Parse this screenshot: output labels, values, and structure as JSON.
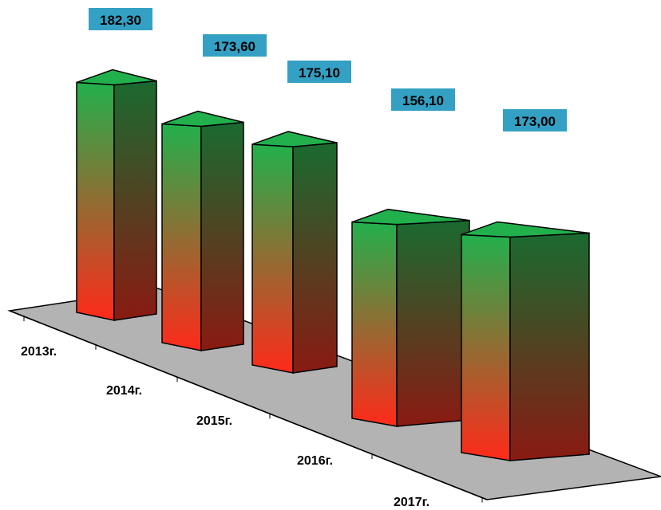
{
  "chart_data": {
    "type": "bar",
    "categories": [
      "2013г.",
      "2014г.",
      "2015г.",
      "2016г.",
      "2017г."
    ],
    "values": [
      182.3,
      173.6,
      175.1,
      156.1,
      173.0
    ],
    "value_labels": [
      "182,30",
      "173,60",
      "175,10",
      "156,10",
      "173,00"
    ],
    "title": "",
    "xlabel": "",
    "ylabel": "",
    "grid": false,
    "legend": "none",
    "colors": {
      "bar_top_color": "#22b04c",
      "bar_bottom_color": "#ff2a1a",
      "side_top_color": "#1a6a30",
      "side_bottom_color": "#8a1a12",
      "floor_color": "#b3b3b3",
      "label_box_color": "#33a0c4"
    }
  }
}
